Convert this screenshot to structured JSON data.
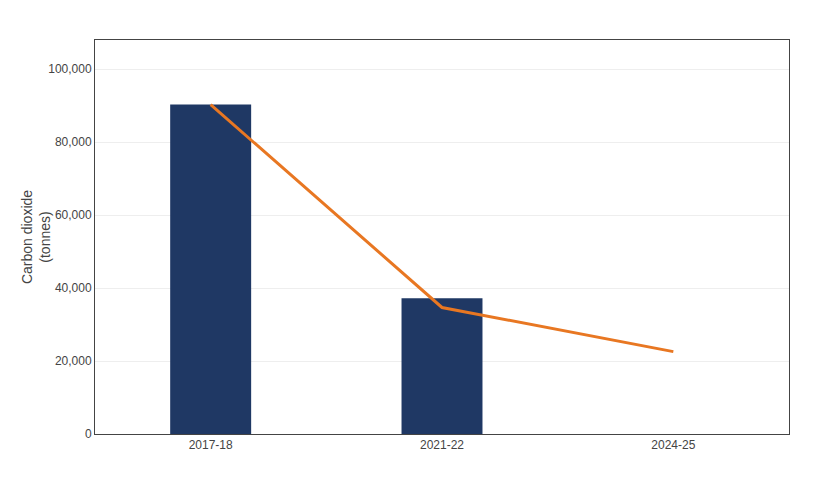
{
  "chart_data": {
    "type": "bar",
    "categories": [
      "2017-18",
      "2021-22",
      "2024-25"
    ],
    "series": [
      {
        "type": "bar",
        "color": "#1F3864",
        "values": [
          90286,
          37178,
          null
        ]
      },
      {
        "type": "line",
        "color": "#E87722",
        "values": [
          90286,
          34681,
          22572
        ]
      }
    ],
    "ylabel": "Carbon dioxide\n(tonnes)",
    "ylim": [
      0,
      108000
    ],
    "yticks": [
      0,
      {
        "value": 20000,
        "label": "20,000"
      },
      {
        "value": 40000,
        "label": "40,000"
      },
      {
        "value": 60000,
        "label": "60,000"
      },
      {
        "value": 80000,
        "label": "80,000"
      },
      {
        "value": 100000,
        "label": "100,000"
      }
    ],
    "grid": true
  }
}
